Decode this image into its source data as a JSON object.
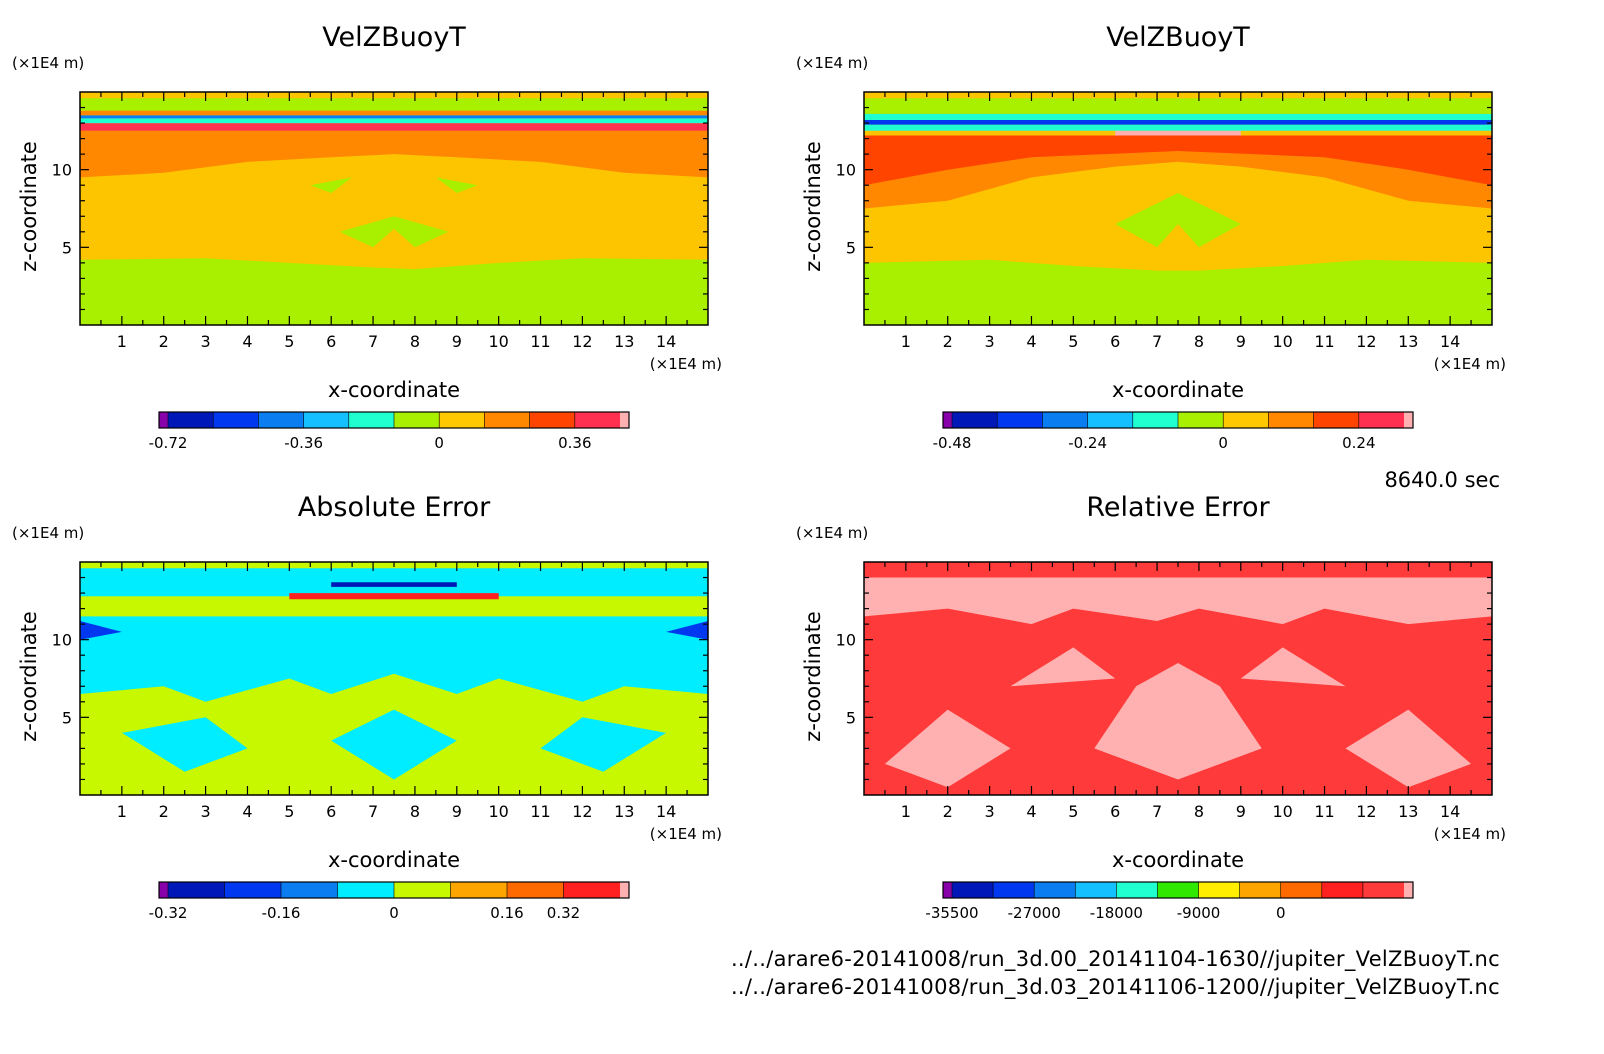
{
  "time_label": "8640.0 sec",
  "files": [
    "../../arare6-20141008/run_3d.00_20141104-1630//jupiter_VelZBuoyT.nc",
    "../../arare6-20141008/run_3d.03_20141106-1200//jupiter_VelZBuoyT.nc"
  ],
  "chart_data": [
    {
      "type": "heatmap",
      "title": "VelZBuoyT",
      "xlabel": "x-coordinate",
      "ylabel": "z-coordinate",
      "x_unit": "(×1E4 m)",
      "y_unit": "(×1E4 m)",
      "xlim": [
        0,
        15
      ],
      "ylim": [
        0,
        15
      ],
      "x_ticks": [
        "1",
        "2",
        "3",
        "4",
        "5",
        "6",
        "7",
        "8",
        "9",
        "10",
        "11",
        "12",
        "13",
        "14"
      ],
      "y_ticks": [
        "5",
        "10"
      ],
      "background": "#fdc400",
      "colorbar": {
        "colors": [
          "#8800aa",
          "#0018b8",
          "#0038f0",
          "#0a7ef0",
          "#14c0ff",
          "#20ffd0",
          "#a8f000",
          "#ffc800",
          "#ff8800",
          "#ff4400",
          "#ff3050",
          "#ffb0b0"
        ],
        "tick_labels": [
          "-0.72",
          "-0.36",
          "0",
          "0.36"
        ]
      },
      "bands": [
        {
          "color": "#a8f000",
          "points": [
            [
              0,
              0
            ],
            [
              15,
              0
            ],
            [
              15,
              4.2
            ],
            [
              12,
              4.3
            ],
            [
              10,
              4.0
            ],
            [
              8,
              3.6
            ],
            [
              7,
              3.7
            ],
            [
              5,
              4.0
            ],
            [
              3,
              4.3
            ],
            [
              0,
              4.2
            ]
          ]
        },
        {
          "color": "#ff8800",
          "points": [
            [
              0,
              12.5
            ],
            [
              15,
              12.5
            ],
            [
              15,
              9.5
            ],
            [
              13,
              9.8
            ],
            [
              11,
              10.5
            ],
            [
              9,
              10.8
            ],
            [
              7.5,
              11.0
            ],
            [
              6,
              10.8
            ],
            [
              4,
              10.5
            ],
            [
              2,
              9.8
            ],
            [
              0,
              9.5
            ]
          ]
        },
        {
          "color": "#ff3050",
          "points": [
            [
              0,
              12.5
            ],
            [
              15,
              12.5
            ],
            [
              15,
              13.0
            ],
            [
              0,
              13.0
            ]
          ]
        },
        {
          "color": "#20ffd0",
          "points": [
            [
              0,
              13.0
            ],
            [
              15,
              13.0
            ],
            [
              15,
              13.3
            ],
            [
              0,
              13.3
            ]
          ]
        },
        {
          "color": "#0a7ef0",
          "points": [
            [
              0,
              13.3
            ],
            [
              15,
              13.3
            ],
            [
              15,
              13.5
            ],
            [
              0,
              13.5
            ]
          ]
        },
        {
          "color": "#ff8800",
          "points": [
            [
              0,
              13.5
            ],
            [
              15,
              13.5
            ],
            [
              15,
              13.8
            ],
            [
              0,
              13.8
            ]
          ]
        },
        {
          "color": "#a8f000",
          "points": [
            [
              0,
              13.8
            ],
            [
              15,
              13.8
            ],
            [
              15,
              14.6
            ],
            [
              0,
              14.6
            ]
          ]
        },
        {
          "color": "#a8f000",
          "points": [
            [
              6.2,
              6.0
            ],
            [
              7.0,
              5.0
            ],
            [
              7.5,
              6.2
            ],
            [
              8.0,
              5.0
            ],
            [
              8.8,
              6.0
            ],
            [
              7.5,
              7.0
            ]
          ]
        },
        {
          "color": "#a8f000",
          "points": [
            [
              5.5,
              9.0
            ],
            [
              6.5,
              9.5
            ],
            [
              6.0,
              8.5
            ]
          ]
        },
        {
          "color": "#a8f000",
          "points": [
            [
              9.5,
              9.0
            ],
            [
              8.5,
              9.5
            ],
            [
              9.0,
              8.5
            ]
          ]
        }
      ]
    },
    {
      "type": "heatmap",
      "title": "VelZBuoyT",
      "xlabel": "x-coordinate",
      "ylabel": "z-coordinate",
      "x_unit": "(×1E4 m)",
      "y_unit": "(×1E4 m)",
      "xlim": [
        0,
        15
      ],
      "ylim": [
        0,
        15
      ],
      "x_ticks": [
        "1",
        "2",
        "3",
        "4",
        "5",
        "6",
        "7",
        "8",
        "9",
        "10",
        "11",
        "12",
        "13",
        "14"
      ],
      "y_ticks": [
        "5",
        "10"
      ],
      "background": "#fdc400",
      "colorbar": {
        "colors": [
          "#8800aa",
          "#0018b8",
          "#0038f0",
          "#0a7ef0",
          "#14c0ff",
          "#20ffd0",
          "#a8f000",
          "#ffc800",
          "#ff8800",
          "#ff4400",
          "#ff3050",
          "#ffb0b0"
        ],
        "tick_labels": [
          "-0.48",
          "-0.24",
          "0",
          "0.24"
        ]
      },
      "bands": [
        {
          "color": "#a8f000",
          "points": [
            [
              0,
              0
            ],
            [
              15,
              0
            ],
            [
              15,
              4.0
            ],
            [
              12,
              4.2
            ],
            [
              10,
              3.8
            ],
            [
              8,
              3.5
            ],
            [
              7,
              3.5
            ],
            [
              5,
              3.8
            ],
            [
              3,
              4.2
            ],
            [
              0,
              4.0
            ]
          ]
        },
        {
          "color": "#ff8800",
          "points": [
            [
              0,
              12.2
            ],
            [
              15,
              12.2
            ],
            [
              15,
              7.5
            ],
            [
              13,
              8.0
            ],
            [
              11,
              9.5
            ],
            [
              9,
              10.2
            ],
            [
              7.5,
              10.5
            ],
            [
              6,
              10.2
            ],
            [
              4,
              9.5
            ],
            [
              2,
              8.0
            ],
            [
              0,
              7.5
            ]
          ]
        },
        {
          "color": "#ff4400",
          "points": [
            [
              0,
              12.2
            ],
            [
              15,
              12.2
            ],
            [
              15,
              9.0
            ],
            [
              13,
              10.0
            ],
            [
              11,
              10.8
            ],
            [
              7.5,
              11.2
            ],
            [
              4,
              10.8
            ],
            [
              2,
              10.0
            ],
            [
              0,
              9.0
            ]
          ]
        },
        {
          "color": "#ffb0b0",
          "points": [
            [
              6,
              12.2
            ],
            [
              9,
              12.2
            ],
            [
              9,
              12.5
            ],
            [
              6,
              12.5
            ]
          ]
        },
        {
          "color": "#20ffd0",
          "points": [
            [
              0,
              12.5
            ],
            [
              15,
              12.5
            ],
            [
              15,
              12.9
            ],
            [
              0,
              12.9
            ]
          ]
        },
        {
          "color": "#0038f0",
          "points": [
            [
              0,
              12.9
            ],
            [
              15,
              12.9
            ],
            [
              15,
              13.2
            ],
            [
              0,
              13.2
            ]
          ]
        },
        {
          "color": "#20ffd0",
          "points": [
            [
              0,
              13.2
            ],
            [
              15,
              13.2
            ],
            [
              15,
              13.6
            ],
            [
              0,
              13.6
            ]
          ]
        },
        {
          "color": "#a8f000",
          "points": [
            [
              0,
              13.6
            ],
            [
              15,
              13.6
            ],
            [
              15,
              14.6
            ],
            [
              0,
              14.6
            ]
          ]
        },
        {
          "color": "#a8f000",
          "points": [
            [
              6.0,
              6.5
            ],
            [
              7.0,
              5.0
            ],
            [
              7.5,
              6.5
            ],
            [
              8.0,
              5.0
            ],
            [
              9.0,
              6.5
            ],
            [
              7.5,
              8.5
            ]
          ]
        }
      ]
    },
    {
      "type": "heatmap",
      "title": "Absolute Error",
      "xlabel": "x-coordinate",
      "ylabel": "z-coordinate",
      "x_unit": "(×1E4 m)",
      "y_unit": "(×1E4 m)",
      "xlim": [
        0,
        15
      ],
      "ylim": [
        0,
        15
      ],
      "x_ticks": [
        "1",
        "2",
        "3",
        "4",
        "5",
        "6",
        "7",
        "8",
        "9",
        "10",
        "11",
        "12",
        "13",
        "14"
      ],
      "y_ticks": [
        "5",
        "10"
      ],
      "background": "#c8f800",
      "colorbar": {
        "colors": [
          "#8800aa",
          "#0018b8",
          "#0038f0",
          "#0a7ef0",
          "#00ecff",
          "#c8f800",
          "#ffa500",
          "#ff6a00",
          "#ff2020",
          "#ffb0b0"
        ],
        "tick_labels": [
          "-0.32",
          "-0.16",
          "0",
          "0.16",
          "0.32"
        ]
      },
      "bands": [
        {
          "color": "#00ecff",
          "points": [
            [
              0,
              11.5
            ],
            [
              15,
              11.5
            ],
            [
              15,
              6.5
            ],
            [
              13,
              7.0
            ],
            [
              12,
              6.0
            ],
            [
              10,
              7.5
            ],
            [
              9,
              6.5
            ],
            [
              7.5,
              7.8
            ],
            [
              6,
              6.5
            ],
            [
              5,
              7.5
            ],
            [
              3,
              6.0
            ],
            [
              2,
              7.0
            ],
            [
              0,
              6.5
            ]
          ]
        },
        {
          "color": "#00ecff",
          "points": [
            [
              1,
              4.0
            ],
            [
              3,
              5.0
            ],
            [
              4,
              3.0
            ],
            [
              2.5,
              1.5
            ]
          ]
        },
        {
          "color": "#00ecff",
          "points": [
            [
              14,
              4.0
            ],
            [
              12,
              5.0
            ],
            [
              11,
              3.0
            ],
            [
              12.5,
              1.5
            ]
          ]
        },
        {
          "color": "#00ecff",
          "points": [
            [
              6,
              3.5
            ],
            [
              7.5,
              5.5
            ],
            [
              9,
              3.5
            ],
            [
              7.5,
              1.0
            ]
          ]
        },
        {
          "color": "#00ecff",
          "points": [
            [
              0,
              12.8
            ],
            [
              15,
              12.8
            ],
            [
              15,
              14.6
            ],
            [
              0,
              14.6
            ]
          ]
        },
        {
          "color": "#ff2020",
          "points": [
            [
              5,
              12.6
            ],
            [
              10,
              12.6
            ],
            [
              10,
              13.0
            ],
            [
              5,
              13.0
            ]
          ]
        },
        {
          "color": "#0018b8",
          "points": [
            [
              6,
              13.4
            ],
            [
              9,
              13.4
            ],
            [
              9,
              13.7
            ],
            [
              6,
              13.7
            ]
          ]
        },
        {
          "color": "#0038f0",
          "points": [
            [
              0,
              10.0
            ],
            [
              1,
              10.5
            ],
            [
              0,
              11.2
            ]
          ]
        },
        {
          "color": "#0038f0",
          "points": [
            [
              15,
              10.0
            ],
            [
              14,
              10.5
            ],
            [
              15,
              11.2
            ]
          ]
        }
      ]
    },
    {
      "type": "heatmap",
      "title": "Relative Error",
      "xlabel": "x-coordinate",
      "ylabel": "z-coordinate",
      "x_unit": "(×1E4 m)",
      "y_unit": "(×1E4 m)",
      "xlim": [
        0,
        15
      ],
      "ylim": [
        0,
        15
      ],
      "x_ticks": [
        "1",
        "2",
        "3",
        "4",
        "5",
        "6",
        "7",
        "8",
        "9",
        "10",
        "11",
        "12",
        "13",
        "14"
      ],
      "y_ticks": [
        "5",
        "10"
      ],
      "background": "#ff3a3a",
      "colorbar": {
        "colors": [
          "#8800aa",
          "#0018b8",
          "#0038f0",
          "#0a7ef0",
          "#14c0ff",
          "#20ffd0",
          "#30e800",
          "#ffee00",
          "#ffa500",
          "#ff6a00",
          "#ff2020",
          "#ff3a3a",
          "#ffb0b0"
        ],
        "tick_labels": [
          "-35500",
          "-27000",
          "-18000",
          "-9000",
          "0"
        ]
      },
      "bands": [
        {
          "color": "#ffb0b0",
          "points": [
            [
              0,
              11.5
            ],
            [
              2,
              12.0
            ],
            [
              4,
              11.0
            ],
            [
              5,
              12.0
            ],
            [
              7,
              11.2
            ],
            [
              8,
              12.0
            ],
            [
              10,
              11.0
            ],
            [
              11,
              12.0
            ],
            [
              13,
              11.0
            ],
            [
              15,
              11.5
            ],
            [
              15,
              14.0
            ],
            [
              0,
              14.0
            ]
          ]
        },
        {
          "color": "#ffb0b0",
          "points": [
            [
              0.5,
              2.0
            ],
            [
              2,
              5.5
            ],
            [
              3.5,
              3.0
            ],
            [
              2.0,
              0.5
            ]
          ]
        },
        {
          "color": "#ffb0b0",
          "points": [
            [
              14.5,
              2.0
            ],
            [
              13,
              5.5
            ],
            [
              11.5,
              3.0
            ],
            [
              13.0,
              0.5
            ]
          ]
        },
        {
          "color": "#ffb0b0",
          "points": [
            [
              5.5,
              3.0
            ],
            [
              6.5,
              7.0
            ],
            [
              7.5,
              8.5
            ],
            [
              8.5,
              7.0
            ],
            [
              9.5,
              3.0
            ],
            [
              7.5,
              1.0
            ]
          ]
        },
        {
          "color": "#ffb0b0",
          "points": [
            [
              3.5,
              7.0
            ],
            [
              5,
              9.5
            ],
            [
              6,
              7.5
            ]
          ]
        },
        {
          "color": "#ffb0b0",
          "points": [
            [
              11.5,
              7.0
            ],
            [
              10,
              9.5
            ],
            [
              9,
              7.5
            ]
          ]
        }
      ]
    }
  ]
}
